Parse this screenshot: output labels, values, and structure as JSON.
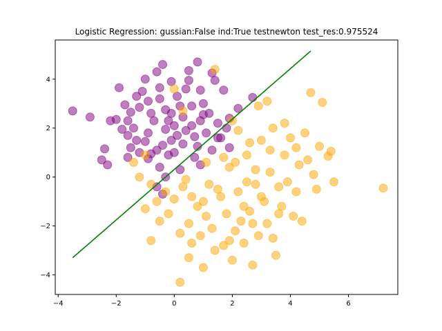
{
  "chart_data": {
    "type": "scatter",
    "title": "Logistic Regression: gussian:False ind:True testnewton test_res:0.975524",
    "xlabel": "",
    "ylabel": "",
    "xlim": [
      -4.1,
      7.7
    ],
    "ylim": [
      -4.8,
      5.6
    ],
    "xticks": [
      -4,
      -2,
      0,
      2,
      4,
      6
    ],
    "yticks": [
      -4,
      -2,
      0,
      2,
      4
    ],
    "grid": false,
    "legend": "none",
    "series": [
      {
        "color": "#800080",
        "alpha": 0.5,
        "points": [
          [
            -3.5,
            2.7
          ],
          [
            -2.9,
            2.45
          ],
          [
            -2.4,
            1.15
          ],
          [
            -2.5,
            0.7
          ],
          [
            -2.2,
            2.3
          ],
          [
            -2.3,
            0.5
          ],
          [
            -2.0,
            2.35
          ],
          [
            -1.9,
            3.65
          ],
          [
            -1.7,
            2.95
          ],
          [
            -1.6,
            2.3
          ],
          [
            -1.8,
            1.95
          ],
          [
            -1.6,
            1.7
          ],
          [
            -1.5,
            2.65
          ],
          [
            -1.5,
            1.2
          ],
          [
            -1.6,
            0.8
          ],
          [
            -1.3,
            3.3
          ],
          [
            -1.2,
            2.85
          ],
          [
            -1.0,
            4.0
          ],
          [
            -1.1,
            3.5
          ],
          [
            -0.9,
            3.1
          ],
          [
            -0.8,
            2.6
          ],
          [
            -0.9,
            1.8
          ],
          [
            -1.0,
            1.45
          ],
          [
            -0.8,
            0.95
          ],
          [
            -0.6,
            4.3
          ],
          [
            -0.5,
            3.65
          ],
          [
            -0.4,
            4.6
          ],
          [
            -0.5,
            3.2
          ],
          [
            -0.3,
            2.75
          ],
          [
            -0.3,
            1.95
          ],
          [
            -0.4,
            1.3
          ],
          [
            -0.5,
            0.4
          ],
          [
            -0.2,
            2.3
          ],
          [
            -0.1,
            3.9
          ],
          [
            -0.1,
            1.5
          ],
          [
            -0.6,
            -0.4
          ],
          [
            -0.4,
            -0.7
          ],
          [
            -0.2,
            0.9
          ],
          [
            0.0,
            2.1
          ],
          [
            0.1,
            3.3
          ],
          [
            0.1,
            1.7
          ],
          [
            0.3,
            2.45
          ],
          [
            0.3,
            1.35
          ],
          [
            0.4,
            3.6
          ],
          [
            0.5,
            4.35
          ],
          [
            0.5,
            3.95
          ],
          [
            0.6,
            2.9
          ],
          [
            0.6,
            2.1
          ],
          [
            0.7,
            1.65
          ],
          [
            0.7,
            0.8
          ],
          [
            0.8,
            4.7
          ],
          [
            0.9,
            3.55
          ],
          [
            0.9,
            2.3
          ],
          [
            1.0,
            3.0
          ],
          [
            1.1,
            1.8
          ],
          [
            1.2,
            2.6
          ],
          [
            1.3,
            1.1
          ],
          [
            1.3,
            4.25
          ],
          [
            1.4,
            3.95
          ],
          [
            1.5,
            2.2
          ],
          [
            1.6,
            1.6
          ],
          [
            1.7,
            3.55
          ],
          [
            1.8,
            2.0
          ],
          [
            1.9,
            2.4
          ],
          [
            1.9,
            1.2
          ],
          [
            2.2,
            2.8
          ],
          [
            2.7,
            3.25
          ],
          [
            -1.4,
            2.0
          ],
          [
            -1.2,
            1.0
          ],
          [
            -0.7,
            2.3
          ],
          [
            -0.1,
            2.6
          ],
          [
            0.2,
            2.9
          ],
          [
            0.4,
            1.9
          ],
          [
            0.8,
            1.25
          ],
          [
            1.0,
            2.55
          ],
          [
            -0.9,
            0.75
          ],
          [
            -1.3,
            1.5
          ],
          [
            -0.6,
            1.1
          ],
          [
            0.0,
            1.0
          ],
          [
            0.2,
            0.3
          ],
          [
            0.9,
            0.5
          ],
          [
            1.5,
            1.6
          ],
          [
            -0.3,
            0.0
          ]
        ]
      },
      {
        "color": "#FFA500",
        "alpha": 0.5,
        "points": [
          [
            -1.2,
            0.0
          ],
          [
            -1.0,
            0.9
          ],
          [
            -0.8,
            -0.3
          ],
          [
            -0.6,
            -1.0
          ],
          [
            -0.5,
            -1.8
          ],
          [
            -0.3,
            -0.6
          ],
          [
            -0.2,
            -1.5
          ],
          [
            0.0,
            -0.9
          ],
          [
            0.2,
            -2.3
          ],
          [
            0.3,
            -0.4
          ],
          [
            0.5,
            -1.9
          ],
          [
            0.6,
            -0.8
          ],
          [
            0.8,
            -1.2
          ],
          [
            0.9,
            -2.4
          ],
          [
            1.0,
            -3.7
          ],
          [
            1.1,
            -1.6
          ],
          [
            1.2,
            -0.3
          ],
          [
            1.3,
            -2.1
          ],
          [
            1.4,
            -3.0
          ],
          [
            1.6,
            -0.8
          ],
          [
            1.7,
            -2.8
          ],
          [
            1.8,
            -1.5
          ],
          [
            1.9,
            0.4
          ],
          [
            2.0,
            -3.4
          ],
          [
            2.1,
            -2.2
          ],
          [
            2.2,
            -0.6
          ],
          [
            2.3,
            -1.8
          ],
          [
            2.4,
            -2.7
          ],
          [
            2.5,
            0.9
          ],
          [
            2.6,
            -1.4
          ],
          [
            2.7,
            -3.6
          ],
          [
            2.8,
            -0.3
          ],
          [
            2.9,
            -2.4
          ],
          [
            3.0,
            1.5
          ],
          [
            3.1,
            -1.0
          ],
          [
            3.2,
            -1.9
          ],
          [
            3.3,
            0.2
          ],
          [
            3.4,
            -2.5
          ],
          [
            3.5,
            -3.2
          ],
          [
            3.6,
            -0.4
          ],
          [
            3.7,
            -1.2
          ],
          [
            3.8,
            0.9
          ],
          [
            3.9,
            -0.2
          ],
          [
            4.0,
            1.6
          ],
          [
            4.1,
            -1.6
          ],
          [
            4.2,
            -0.6
          ],
          [
            4.3,
            0.5
          ],
          [
            4.4,
            -1.8
          ],
          [
            4.5,
            1.8
          ],
          [
            4.6,
            0.7
          ],
          [
            4.7,
            3.45
          ],
          [
            4.9,
            -0.5
          ],
          [
            5.0,
            1.25
          ],
          [
            5.1,
            3.05
          ],
          [
            5.3,
            0.85
          ],
          [
            5.4,
            1.05
          ],
          [
            5.5,
            -0.2
          ],
          [
            7.2,
            -0.45
          ],
          [
            0.2,
            -4.3
          ],
          [
            0.5,
            -3.3
          ],
          [
            -0.8,
            -2.6
          ],
          [
            1.4,
            4.4
          ],
          [
            2.2,
            1.9
          ],
          [
            2.9,
            2.9
          ],
          [
            3.2,
            3.1
          ],
          [
            2.6,
            1.4
          ],
          [
            2.8,
            0.3
          ],
          [
            3.4,
            2.0
          ],
          [
            3.8,
            2.2
          ],
          [
            4.2,
            1.2
          ],
          [
            2.1,
            0.6
          ],
          [
            1.7,
            0.8
          ],
          [
            1.5,
            -0.5
          ],
          [
            2.4,
            -1.2
          ],
          [
            3.0,
            -0.8
          ],
          [
            3.6,
            -1.5
          ],
          [
            1.0,
            -1.0
          ],
          [
            0.6,
            -2.7
          ],
          [
            1.9,
            -2.6
          ],
          [
            2.5,
            -0.2
          ],
          [
            3.3,
            1.1
          ],
          [
            0.4,
            -0.1
          ],
          [
            1.1,
            0.6
          ],
          [
            2.7,
            -1.9
          ],
          [
            -1.4,
            0.6
          ],
          [
            -1.0,
            -1.3
          ],
          [
            0.0,
            3.6
          ],
          [
            0.3,
            2.7
          ],
          [
            2.0,
            2.3
          ],
          [
            4.8,
            0.1
          ]
        ]
      }
    ],
    "line": {
      "color": "#008000",
      "x": [
        -3.5,
        4.7
      ],
      "y": [
        -3.3,
        5.15
      ]
    }
  }
}
